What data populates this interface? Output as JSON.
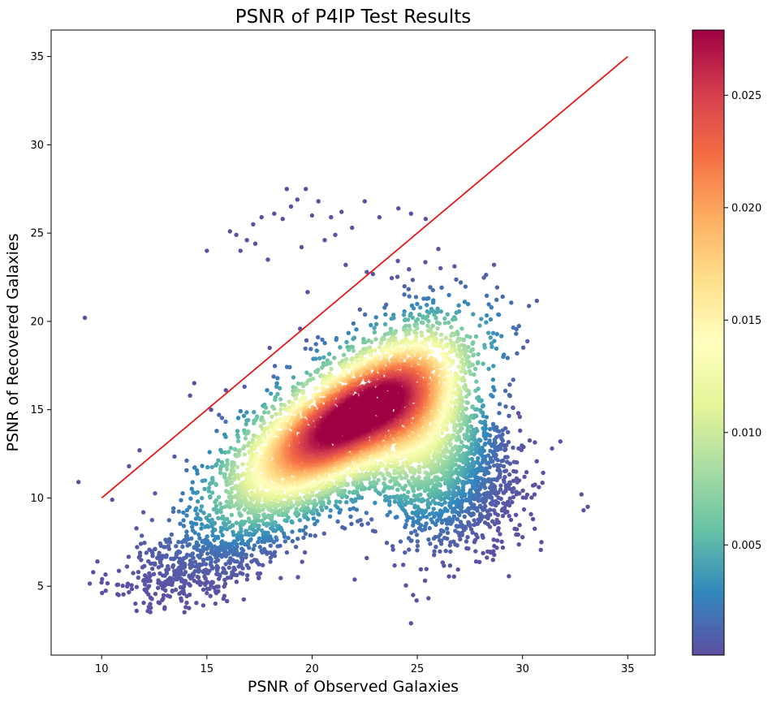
{
  "chart_data": {
    "type": "scatter",
    "title": "PSNR of P4IP Test Results",
    "xlabel": "PSNR of Observed Galaxies",
    "ylabel": "PSNR of Recovered Galaxies",
    "xlim": [
      7.6,
      36.3
    ],
    "ylim": [
      1.1,
      36.5
    ],
    "xticks": [
      10,
      15,
      20,
      25,
      30,
      35
    ],
    "yticks": [
      5,
      10,
      15,
      20,
      25,
      30,
      35
    ],
    "grid": false,
    "colorbar": {
      "colormap": "Spectral_r",
      "range": [
        0.0001,
        0.0279
      ],
      "ticks": [
        0.005,
        0.01,
        0.015,
        0.02,
        0.025
      ],
      "tick_labels": [
        "0.005",
        "0.010",
        "0.015",
        "0.020",
        "0.025"
      ]
    },
    "reference_line": {
      "color": "#e41a1c",
      "x": [
        10,
        35
      ],
      "y": [
        10,
        35
      ]
    },
    "density_cloud": {
      "description_values": "Dense cloud of scatter points colored by point density; peak near (21.5, 14.3).",
      "point_count_estimate": 20000,
      "peak": {
        "x": 21.5,
        "y": 14.3,
        "density": 0.0279
      },
      "x_range": [
        9,
        30.5
      ],
      "y_range": [
        3.5,
        24
      ]
    },
    "outlier_points": [
      {
        "x": 8.9,
        "y": 10.9
      },
      {
        "x": 9.2,
        "y": 20.2
      },
      {
        "x": 9.6,
        "y": 5.8
      },
      {
        "x": 9.8,
        "y": 6.4
      },
      {
        "x": 10.5,
        "y": 9.9
      },
      {
        "x": 11.3,
        "y": 11.8
      },
      {
        "x": 11.8,
        "y": 12.7
      },
      {
        "x": 14.2,
        "y": 15.8
      },
      {
        "x": 14.4,
        "y": 16.5
      },
      {
        "x": 15.0,
        "y": 24.0
      },
      {
        "x": 15.2,
        "y": 15.0
      },
      {
        "x": 15.9,
        "y": 16.1
      },
      {
        "x": 16.1,
        "y": 25.1
      },
      {
        "x": 16.4,
        "y": 24.9
      },
      {
        "x": 16.6,
        "y": 24.0
      },
      {
        "x": 16.9,
        "y": 24.6
      },
      {
        "x": 17.2,
        "y": 25.5
      },
      {
        "x": 17.3,
        "y": 24.4
      },
      {
        "x": 17.6,
        "y": 25.9
      },
      {
        "x": 17.9,
        "y": 23.5
      },
      {
        "x": 18.2,
        "y": 26.1
      },
      {
        "x": 18.6,
        "y": 25.8
      },
      {
        "x": 18.8,
        "y": 27.5
      },
      {
        "x": 19.0,
        "y": 26.5
      },
      {
        "x": 19.3,
        "y": 26.9
      },
      {
        "x": 19.5,
        "y": 24.2
      },
      {
        "x": 19.7,
        "y": 27.5
      },
      {
        "x": 20.0,
        "y": 26.0
      },
      {
        "x": 20.3,
        "y": 26.8
      },
      {
        "x": 20.6,
        "y": 24.6
      },
      {
        "x": 20.9,
        "y": 25.9
      },
      {
        "x": 21.1,
        "y": 24.9
      },
      {
        "x": 21.4,
        "y": 26.2
      },
      {
        "x": 21.6,
        "y": 23.2
      },
      {
        "x": 21.9,
        "y": 25.3
      },
      {
        "x": 22.5,
        "y": 26.8
      },
      {
        "x": 23.2,
        "y": 25.9
      },
      {
        "x": 24.1,
        "y": 26.4
      },
      {
        "x": 24.7,
        "y": 26.1
      },
      {
        "x": 24.8,
        "y": 4.5
      },
      {
        "x": 24.7,
        "y": 2.9
      },
      {
        "x": 25.4,
        "y": 25.8
      },
      {
        "x": 26.0,
        "y": 24.1
      },
      {
        "x": 29.8,
        "y": 14.8
      },
      {
        "x": 30.5,
        "y": 8.8
      },
      {
        "x": 30.9,
        "y": 7.5
      },
      {
        "x": 31.4,
        "y": 12.8
      },
      {
        "x": 31.8,
        "y": 13.2
      },
      {
        "x": 32.8,
        "y": 10.2
      },
      {
        "x": 32.9,
        "y": 9.3
      },
      {
        "x": 33.1,
        "y": 9.5
      }
    ]
  }
}
